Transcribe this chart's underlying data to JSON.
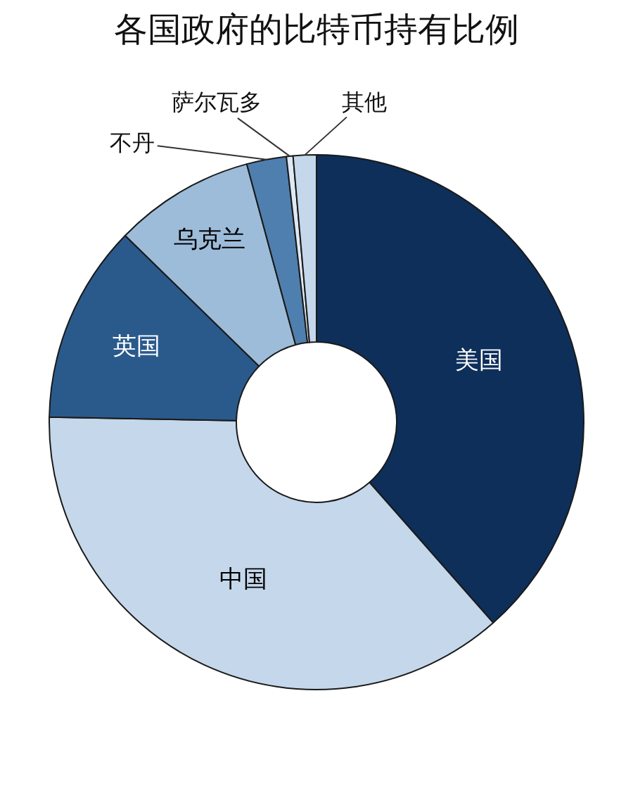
{
  "chart_data": {
    "type": "donut",
    "title": "各国政府的比特币持有比例",
    "categories": [
      "美国",
      "中国",
      "英国",
      "乌克兰",
      "不丹",
      "萨尔瓦多",
      "其他"
    ],
    "values": [
      38.5,
      36.8,
      12,
      8.5,
      2.4,
      0.4,
      1.4
    ],
    "colors": [
      "#0d2f5a",
      "#c5d7ea",
      "#2a5a8c",
      "#9dbcd9",
      "#4f7fae",
      "#dfe9f4",
      "#c5d7ea"
    ]
  }
}
